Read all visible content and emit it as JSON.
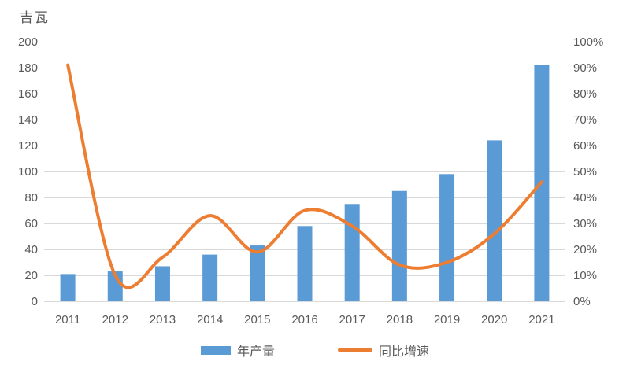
{
  "chart_data": {
    "type": "combo-bar-line",
    "unit_label": "吉瓦",
    "categories": [
      "2011",
      "2012",
      "2013",
      "2014",
      "2015",
      "2016",
      "2017",
      "2018",
      "2019",
      "2020",
      "2021"
    ],
    "series": [
      {
        "name": "年产量",
        "type": "bar",
        "axis": "left",
        "color": "#5B9BD5",
        "values": [
          21,
          23,
          27,
          36,
          43,
          58,
          75,
          85,
          98,
          124,
          182
        ]
      },
      {
        "name": "同比增速",
        "type": "line",
        "axis": "right",
        "color": "#ED7D31",
        "values_percent": [
          91,
          10,
          17,
          33,
          19,
          35,
          29,
          14,
          15,
          26,
          46
        ]
      }
    ],
    "left_axis": {
      "min": 0,
      "max": 200,
      "step": 20,
      "tick_labels": [
        "200",
        "180",
        "160",
        "140",
        "120",
        "100",
        "80",
        "60",
        "40",
        "20",
        "0"
      ]
    },
    "right_axis": {
      "min": 0,
      "max": 100,
      "step": 10,
      "tick_labels": [
        "100%",
        "90%",
        "80%",
        "70%",
        "60%",
        "50%",
        "40%",
        "30%",
        "20%",
        "10%",
        "0%"
      ]
    },
    "grid": true,
    "legend_position": "bottom",
    "colors": {
      "grid": "#D9D9D9",
      "text": "#595959",
      "background": "#FFFFFF"
    }
  }
}
